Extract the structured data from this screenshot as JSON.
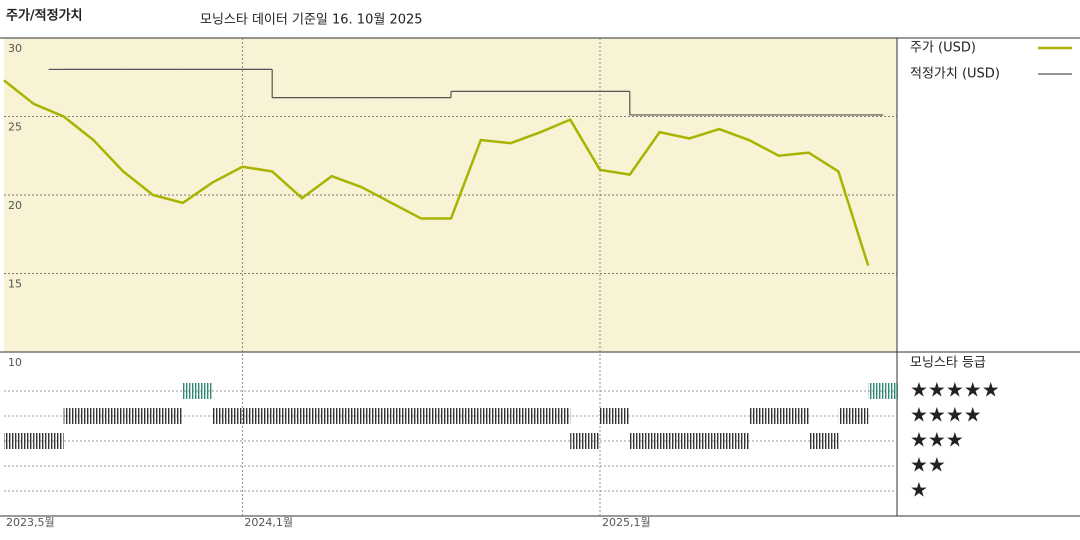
{
  "chart_data": {
    "type": "line",
    "title": "주가/적정가치",
    "subtitle": "모닝스타 데이터 기준일 16. 10월 2025",
    "x": [
      "2023-05",
      "2023-06",
      "2023-07",
      "2023-08",
      "2023-09",
      "2023-10",
      "2023-11",
      "2023-12",
      "2024-01",
      "2024-02",
      "2024-03",
      "2024-04",
      "2024-05",
      "2024-06",
      "2024-07",
      "2024-08",
      "2024-09",
      "2024-10",
      "2024-11",
      "2024-12",
      "2025-01",
      "2025-02",
      "2025-03",
      "2025-04",
      "2025-05",
      "2025-06",
      "2025-07",
      "2025-08",
      "2025-09",
      "2025-10"
    ],
    "series": [
      {
        "name": "주가 (USD)",
        "color": "#a9b300",
        "values": [
          27.3,
          25.8,
          25,
          23.5,
          21.5,
          20,
          19.5,
          20.8,
          21.8,
          21.5,
          19.8,
          21.2,
          20.5,
          19.5,
          18.5,
          18.5,
          23.5,
          23.3,
          24,
          24.8,
          21.6,
          21.3,
          24,
          23.6,
          24.2,
          23.5,
          22.5,
          22.7,
          21.5,
          15.5
        ]
      },
      {
        "name": "적정가치 (USD)",
        "color": "#555555",
        "step": true,
        "values": [
          null,
          28,
          28,
          28,
          28,
          28,
          28,
          28,
          28,
          26.2,
          26.2,
          26.2,
          26.2,
          26.2,
          26.2,
          26.6,
          26.6,
          26.6,
          26.6,
          26.6,
          26.6,
          25.1,
          25.1,
          25.1,
          25.1,
          25.1,
          25.1,
          25.1,
          25.1,
          25.1
        ]
      }
    ],
    "ylim": [
      10,
      30
    ],
    "yticks": [
      10,
      15,
      20,
      25,
      30
    ],
    "grid": true,
    "xticks": [
      {
        "value": "2023-05",
        "label": "2023,5월"
      },
      {
        "value": "2024-01",
        "label": "2024,1월"
      },
      {
        "value": "2025-01",
        "label": "2025,1월"
      }
    ],
    "ratings": {
      "name": "모닝스타 등급",
      "values": [
        3,
        3,
        4,
        4,
        4,
        4,
        5,
        4,
        4,
        4,
        4,
        4,
        4,
        4,
        4,
        4,
        4,
        4,
        4,
        3,
        4,
        3,
        3,
        3,
        3,
        4,
        4,
        3,
        4,
        5
      ],
      "labels": [
        "★★★★★",
        "★★★★",
        "★★★",
        "★★",
        "★"
      ]
    }
  }
}
